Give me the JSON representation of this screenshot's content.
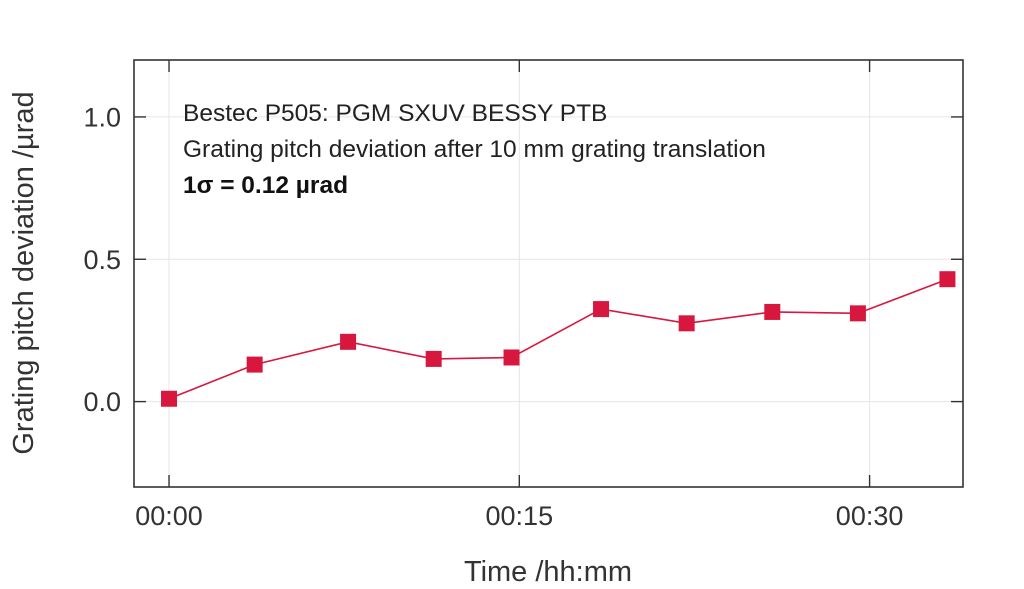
{
  "chart_data": {
    "type": "line",
    "title": "",
    "xlabel": "Time /hh:mm",
    "ylabel": "Grating pitch deviation /µrad",
    "xlim": [
      "-00:01:30",
      "00:34:00"
    ],
    "ylim": [
      -0.3,
      1.2
    ],
    "x_ticks": [
      "00:00",
      "00:15",
      "00:30"
    ],
    "y_ticks": [
      "0.0",
      "0.5",
      "1.0"
    ],
    "grid": true,
    "legend": "none",
    "series": [
      {
        "x": [
          "00:00:00",
          "00:03:40",
          "00:07:40",
          "00:11:20",
          "00:14:40",
          "00:18:30",
          "00:22:10",
          "00:25:50",
          "00:29:30",
          "00:33:20"
        ],
        "y": [
          0.01,
          0.13,
          0.21,
          0.15,
          0.155,
          0.325,
          0.275,
          0.315,
          0.31,
          0.43
        ],
        "color": "#d8173f",
        "marker": "square"
      }
    ],
    "annotations": [
      "Bestec P505: PGM SXUV BESSY PTB",
      "Grating pitch deviation after 10 mm grating translation",
      "1σ = 0.12 µrad"
    ]
  }
}
